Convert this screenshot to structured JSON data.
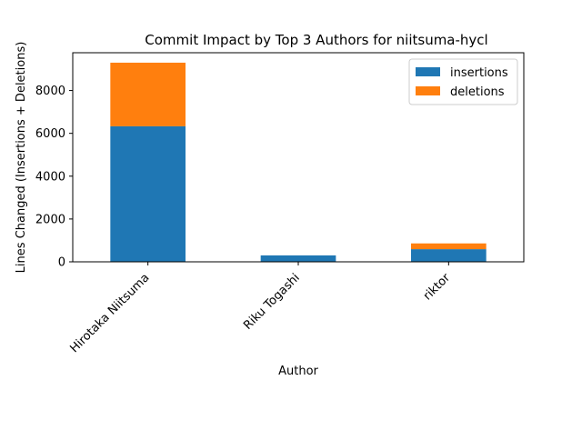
{
  "chart_data": {
    "type": "bar",
    "stacked": true,
    "title": "Commit Impact by Top 3 Authors for niitsuma-hycl",
    "xlabel": "Author",
    "ylabel": "Lines Changed (Insertions + Deletions)",
    "categories": [
      "Hirotaka Niitsuma",
      "Riku Togashi",
      "riktor"
    ],
    "series": [
      {
        "name": "insertions",
        "values": [
          6330,
          300,
          590
        ],
        "color": "#1f77b4"
      },
      {
        "name": "deletions",
        "values": [
          2970,
          0,
          270
        ],
        "color": "#ff7f0e"
      }
    ],
    "ylim": [
      0,
      9765
    ],
    "yticks": [
      0,
      2000,
      4000,
      6000,
      8000
    ],
    "grid": false,
    "legend_position": "top-right"
  }
}
